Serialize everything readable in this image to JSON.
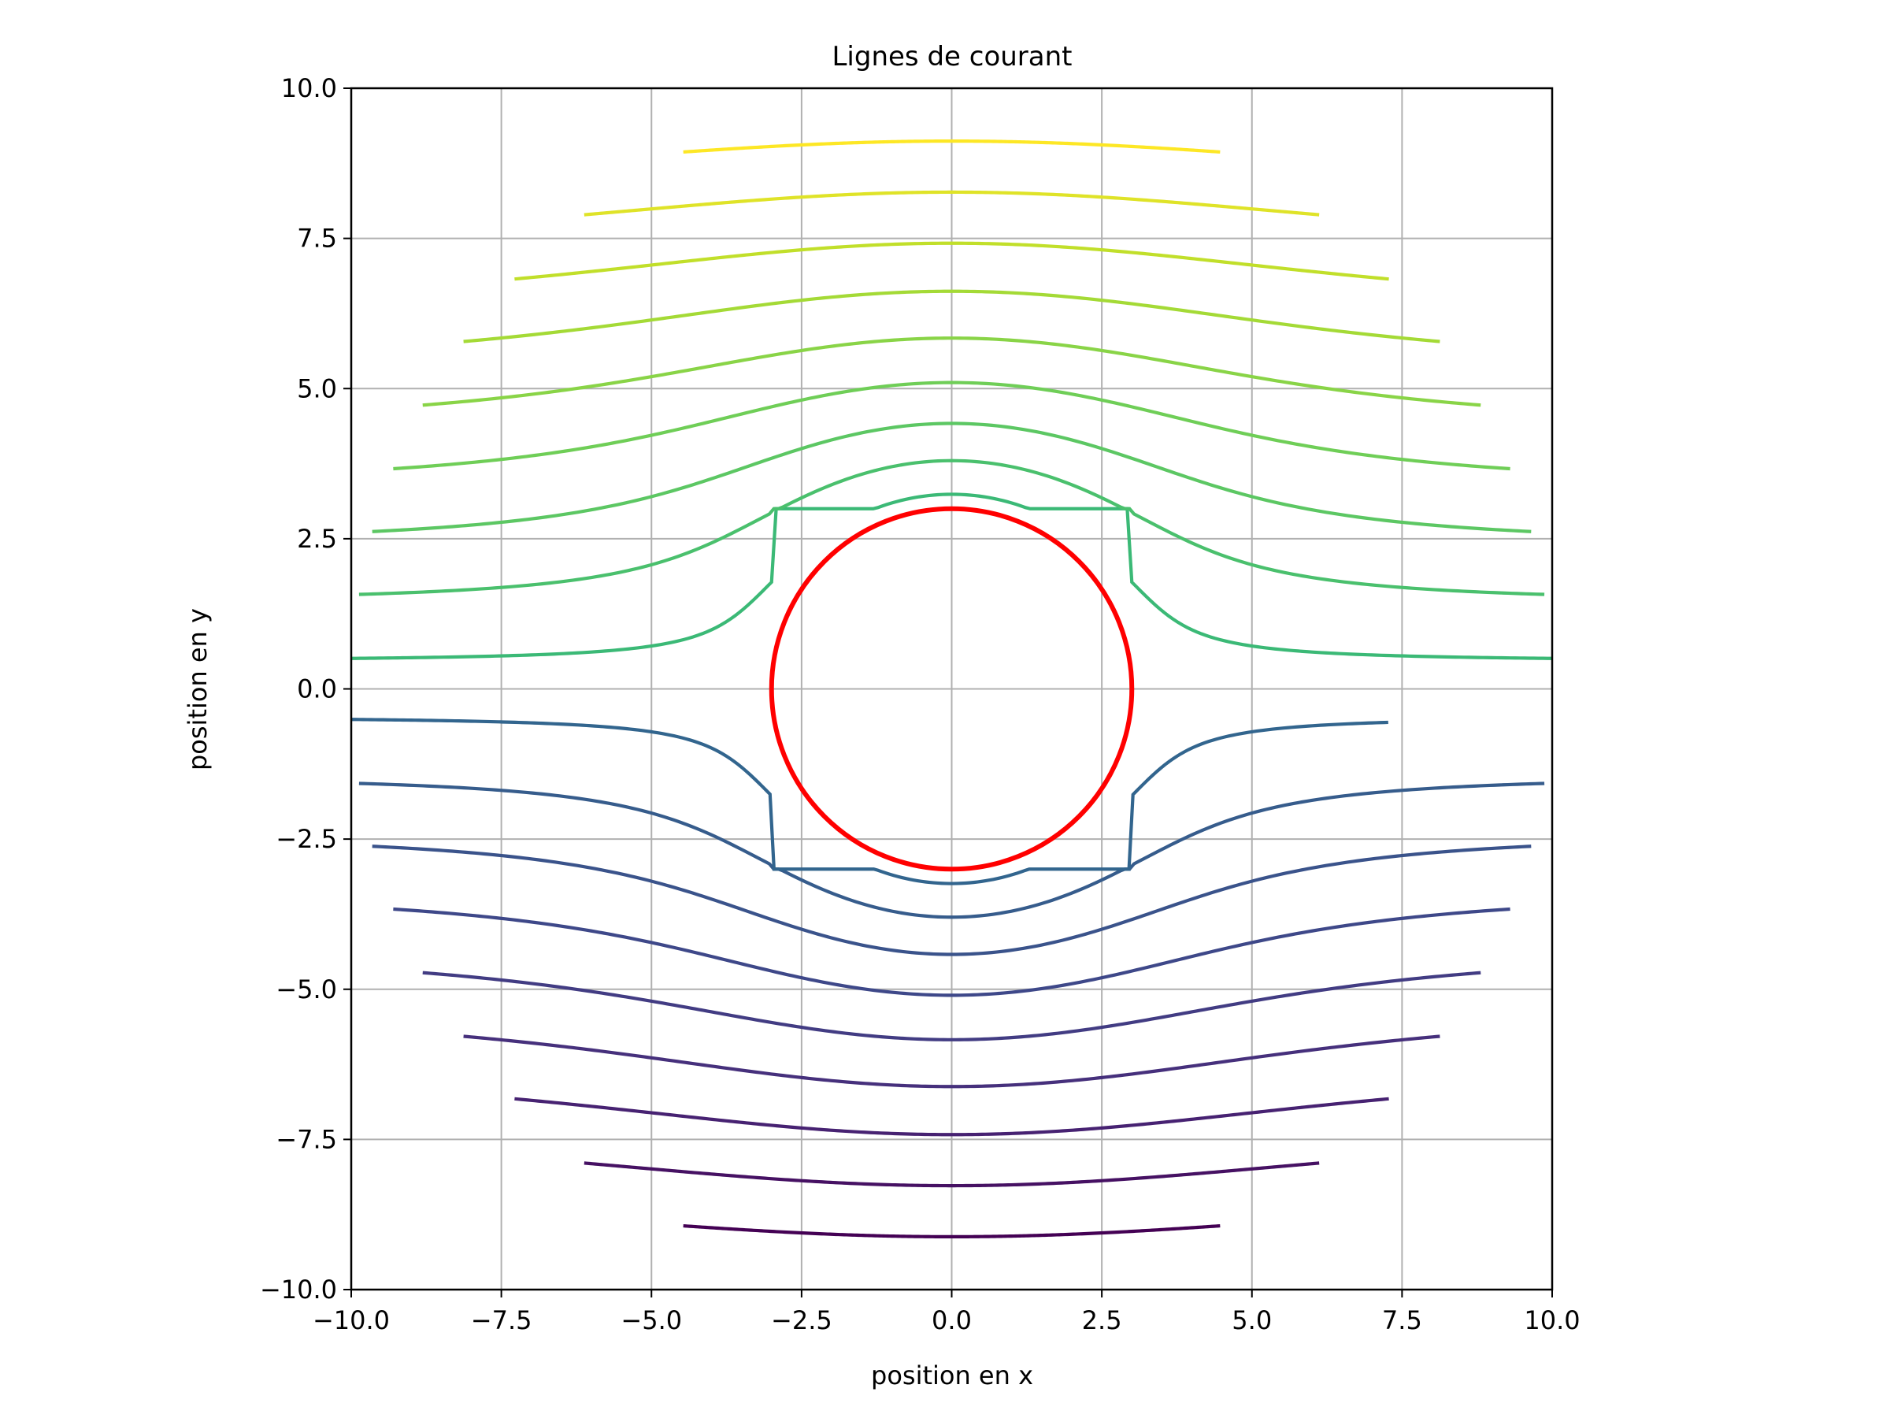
{
  "chart_data": {
    "type": "line",
    "title": "Lignes de courant",
    "xlabel": "position en x",
    "ylabel": "position en y",
    "xlim": [
      -10.0,
      10.0
    ],
    "ylim": [
      -10.0,
      10.0
    ],
    "xticks": [
      "−10.0",
      "−7.5",
      "−5.0",
      "−2.5",
      "0.0",
      "2.5",
      "5.0",
      "7.5",
      "10.0"
    ],
    "yticks": [
      "10.0",
      "7.5",
      "5.0",
      "2.5",
      "0.0",
      "−2.5",
      "−5.0",
      "−7.5",
      "−10.0"
    ],
    "xtick_values": [
      -10,
      -7.5,
      -5,
      -2.5,
      0,
      2.5,
      5,
      7.5,
      10
    ],
    "ytick_values": [
      10,
      7.5,
      5,
      2.5,
      0,
      -2.5,
      -5,
      -7.5,
      -10
    ],
    "grid": true,
    "colormap": "viridis",
    "flow": {
      "cylinder_radius": 3.0,
      "center": [
        0,
        0
      ]
    },
    "cylinder": {
      "radius": 3.0,
      "color": "#ff0000"
    },
    "streamlines": [
      {
        "y_center": -9.12,
        "x_start": -4.47,
        "x_end": 4.47
      },
      {
        "y_center": -8.27,
        "x_start": -6.12,
        "x_end": 6.12
      },
      {
        "y_center": -7.42,
        "x_start": -7.28,
        "x_end": 7.28
      },
      {
        "y_center": -6.62,
        "x_start": -8.13,
        "x_end": 8.13
      },
      {
        "y_center": -5.84,
        "x_start": -8.81,
        "x_end": 8.81
      },
      {
        "y_center": -5.1,
        "x_start": -9.3,
        "x_end": 9.3
      },
      {
        "y_center": -4.42,
        "x_start": -9.65,
        "x_end": 9.65
      },
      {
        "y_center": -3.8,
        "x_start": -9.87,
        "x_end": 9.87
      },
      {
        "y_center": -3.24,
        "x_start": -10.0,
        "x_end": 7.27
      },
      {
        "y_center": 3.24,
        "x_start": -10.0,
        "x_end": 10.0
      },
      {
        "y_center": 3.8,
        "x_start": -9.87,
        "x_end": 9.87
      },
      {
        "y_center": 4.42,
        "x_start": -9.65,
        "x_end": 9.65
      },
      {
        "y_center": 5.1,
        "x_start": -9.3,
        "x_end": 9.3
      },
      {
        "y_center": 5.84,
        "x_start": -8.81,
        "x_end": 8.81
      },
      {
        "y_center": 6.62,
        "x_start": -8.13,
        "x_end": 8.13
      },
      {
        "y_center": 7.42,
        "x_start": -7.28,
        "x_end": 7.28
      },
      {
        "y_center": 8.27,
        "x_start": -6.12,
        "x_end": 6.12
      },
      {
        "y_center": 9.12,
        "x_start": -4.47,
        "x_end": 4.47
      }
    ]
  },
  "colors": {
    "grid": "#b0b0b0",
    "axes": "#000000",
    "background": "#ffffff",
    "viridis_stops": [
      "#440154",
      "#482878",
      "#3e4989",
      "#31688e",
      "#26828e",
      "#1f9e89",
      "#35b779",
      "#6ece58",
      "#b5de2b",
      "#fde725"
    ]
  }
}
